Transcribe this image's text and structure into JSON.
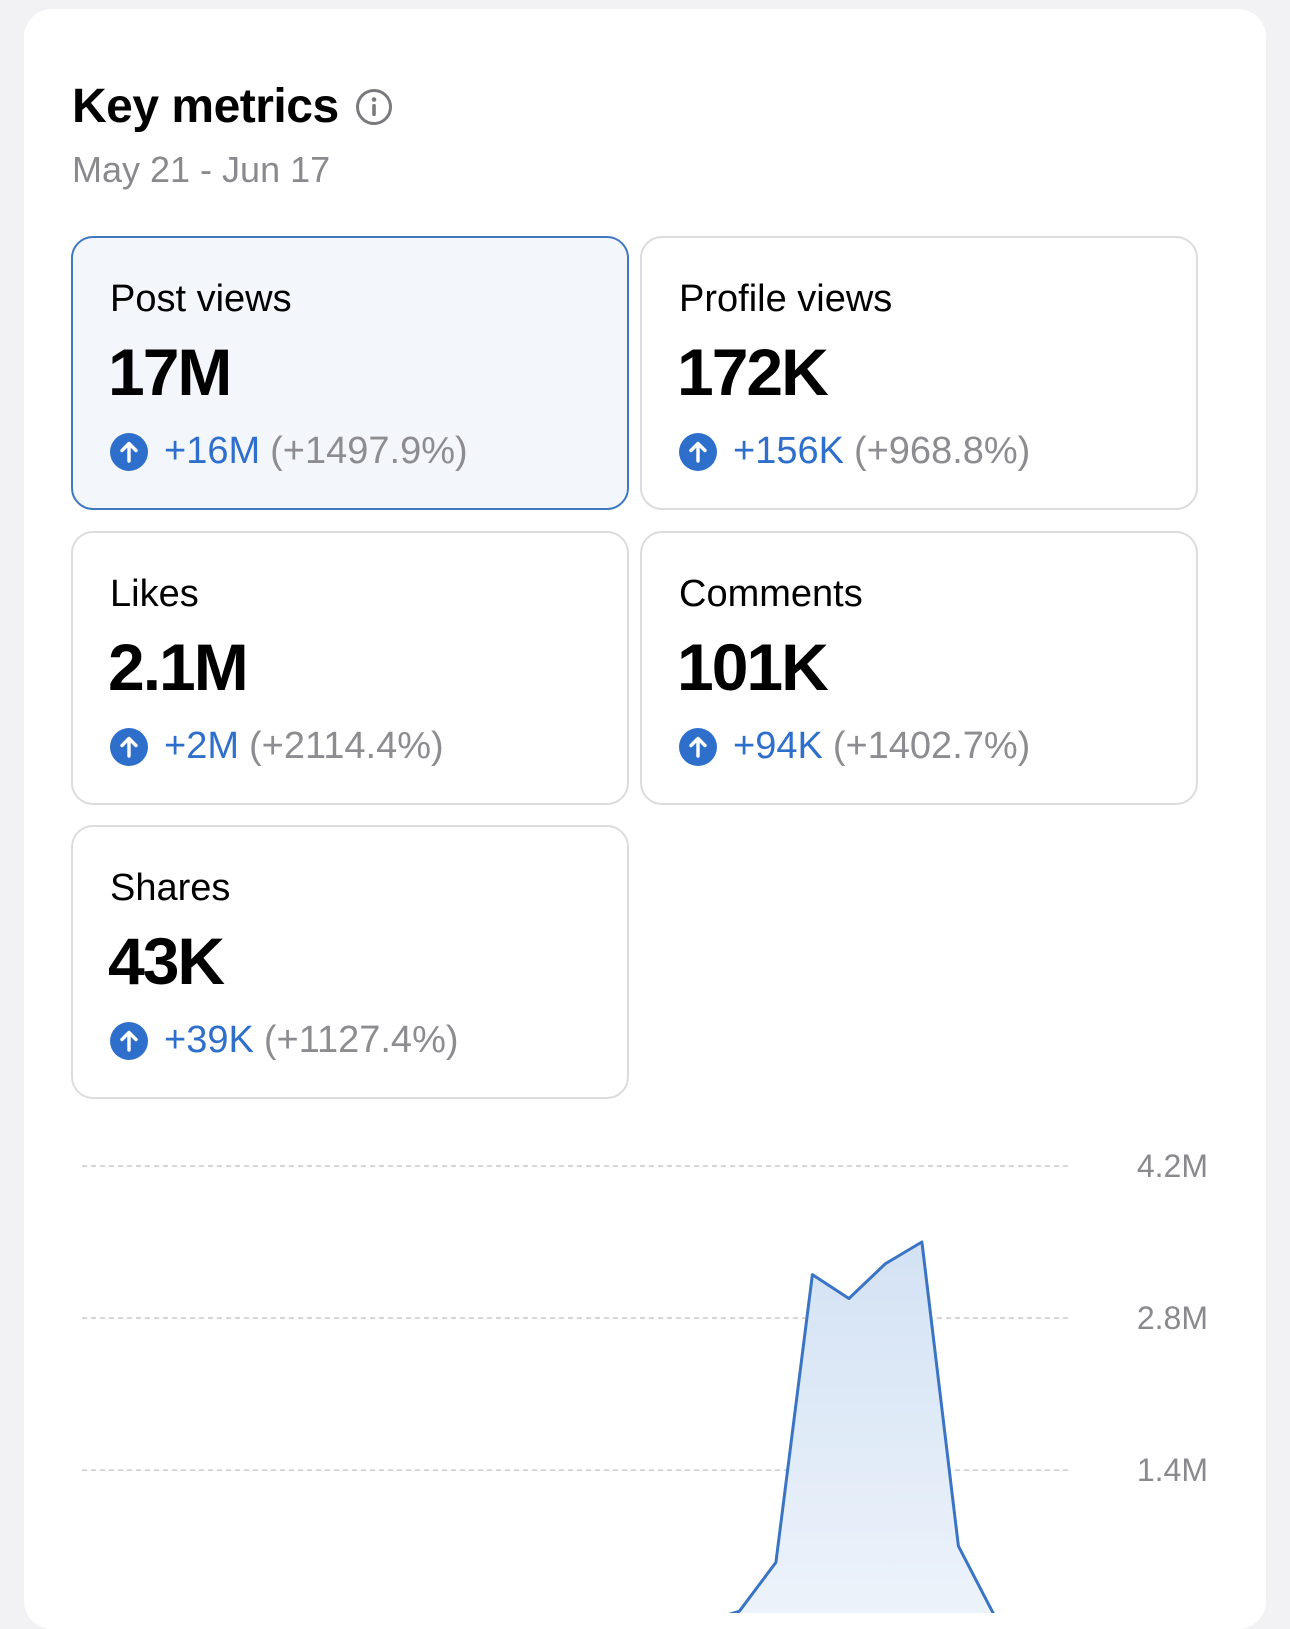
{
  "header": {
    "title": "Key metrics",
    "date_range": "May 21 - Jun 17",
    "info_icon": "info-circle-icon"
  },
  "metrics": [
    {
      "label": "Post views",
      "value": "17M",
      "delta": "+16M",
      "pct": "(+1497.9%)",
      "selected": true
    },
    {
      "label": "Profile views",
      "value": "172K",
      "delta": "+156K",
      "pct": "(+968.8%)",
      "selected": false
    },
    {
      "label": "Likes",
      "value": "2.1M",
      "delta": "+2M",
      "pct": "(+2114.4%)",
      "selected": false
    },
    {
      "label": "Comments",
      "value": "101K",
      "delta": "+94K",
      "pct": "(+1402.7%)",
      "selected": false
    },
    {
      "label": "Shares",
      "value": "43K",
      "delta": "+39K",
      "pct": "(+1127.4%)",
      "selected": false
    }
  ],
  "colors": {
    "accent": "#2f6fcc",
    "selected_border": "#3f78c0",
    "selected_bg": "#f3f7fb",
    "muted_text": "#8a8a8e",
    "line": "#3a74c4",
    "fill": "#d6e4f5"
  },
  "chart_data": {
    "type": "area",
    "x": [
      1,
      2,
      3,
      4,
      5,
      6,
      7,
      8,
      9,
      10,
      11,
      12,
      13,
      14,
      15,
      16,
      17,
      18,
      19,
      20,
      21,
      22,
      23,
      24,
      25,
      26,
      27,
      28
    ],
    "series": [
      {
        "values": [
          0,
          0,
          0,
          0,
          0,
          0,
          0,
          0,
          0,
          0,
          0,
          0,
          0,
          0,
          0,
          0,
          0,
          0,
          0.1,
          0.55,
          3.2,
          2.98,
          3.3,
          3.5,
          0.7,
          0.05,
          0,
          0
        ]
      }
    ],
    "yticks": [
      "4.2M",
      "2.8M",
      "1.4M"
    ],
    "ytick_values": [
      4.2,
      2.8,
      1.4
    ],
    "ylim": [
      0,
      4.2
    ],
    "grid": true
  }
}
